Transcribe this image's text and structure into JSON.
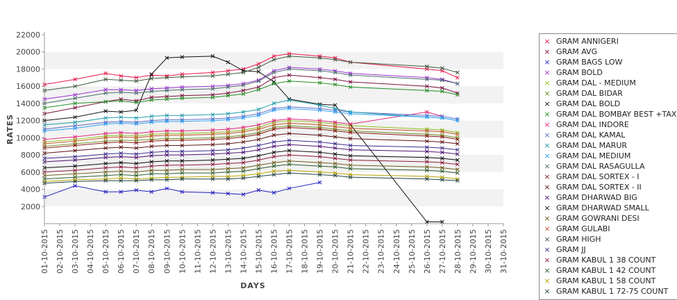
{
  "chart_data": {
    "type": "line",
    "title": "",
    "xlabel": "DAYS",
    "ylabel": "RATES",
    "ylim": [
      0,
      22000
    ],
    "yticks": [
      2000,
      4000,
      6000,
      8000,
      10000,
      12000,
      14000,
      16000,
      18000,
      20000,
      22000
    ],
    "grid": "alternating horizontal bands",
    "legend_position": "right",
    "categories": [
      "01-10-2015",
      "02-10-2015",
      "03-10-2015",
      "04-10-2015",
      "05-10-2015",
      "06-10-2015",
      "07-10-2015",
      "08-10-2015",
      "09-10-2015",
      "10-10-2015",
      "11-10-2015",
      "12-10-2015",
      "13-10-2015",
      "14-10-2015",
      "15-10-2015",
      "16-10-2015",
      "17-10-2015",
      "18-10-2015",
      "19-10-2015",
      "20-10-2015",
      "21-10-2015",
      "22-10-2015",
      "23-10-2015",
      "24-10-2015",
      "25-10-2015",
      "26-10-2015",
      "27-10-2015",
      "28-10-2015",
      "29-10-2015",
      "30-10-2015",
      "31-10-2015"
    ],
    "series": [
      {
        "name": "GRAM ANNIGERI",
        "color": "#e6194b",
        "values": [
          16200,
          null,
          16800,
          null,
          17500,
          17200,
          17000,
          17300,
          17200,
          17400,
          null,
          17600,
          17800,
          18000,
          18600,
          19500,
          19800,
          null,
          19500,
          19300,
          18800,
          null,
          null,
          null,
          null,
          18000,
          17800,
          17000,
          null,
          null,
          null
        ]
      },
      {
        "name": "GRAM AVG",
        "color": "#7a0f3c",
        "values": [
          12800,
          null,
          13500,
          null,
          14200,
          14500,
          14300,
          14700,
          14800,
          14900,
          null,
          15000,
          15200,
          15500,
          15900,
          17000,
          17300,
          null,
          17000,
          16800,
          16500,
          null,
          null,
          null,
          null,
          16000,
          15800,
          15200,
          null,
          null,
          null
        ]
      },
      {
        "name": "GRAM BAGS LOW",
        "color": "#1f1fbf",
        "values": [
          3100,
          null,
          4400,
          null,
          3700,
          3700,
          3900,
          3700,
          4100,
          3700,
          null,
          3600,
          3500,
          3400,
          3900,
          3600,
          4100,
          null,
          4800,
          null,
          null,
          null,
          null,
          null,
          null,
          null,
          null,
          null,
          null,
          null,
          null
        ]
      },
      {
        "name": "GRAM BOLD",
        "color": "#9b30d0",
        "values": [
          14500,
          null,
          15000,
          null,
          15600,
          15600,
          15500,
          15700,
          15800,
          15900,
          null,
          16000,
          16100,
          16300,
          16700,
          17800,
          18200,
          null,
          18000,
          17800,
          17500,
          null,
          null,
          null,
          null,
          17000,
          16800,
          16300,
          null,
          null,
          null
        ]
      },
      {
        "name": "GRAM DAL - MEDIUM",
        "color": "#8fbf1f",
        "values": [
          9500,
          null,
          9800,
          null,
          10200,
          10300,
          10200,
          10400,
          10500,
          10500,
          null,
          10600,
          10700,
          10900,
          11200,
          11800,
          12000,
          null,
          11800,
          11600,
          11400,
          null,
          null,
          null,
          null,
          11000,
          10900,
          10600,
          null,
          null,
          null
        ]
      },
      {
        "name": "GRAM DAL BIDAR",
        "color": "#6b8e23",
        "values": [
          9000,
          null,
          9300,
          null,
          9600,
          9700,
          9700,
          9800,
          9900,
          9900,
          null,
          10000,
          10100,
          10300,
          10600,
          11200,
          11400,
          null,
          11200,
          11000,
          10800,
          null,
          null,
          null,
          null,
          10400,
          10300,
          10000,
          null,
          null,
          null
        ]
      },
      {
        "name": "GRAM DAL BOLD",
        "color": "#111111",
        "values": [
          12000,
          null,
          12400,
          null,
          13100,
          13000,
          13200,
          17400,
          19300,
          19400,
          null,
          19500,
          18800,
          17800,
          17700,
          16500,
          14500,
          null,
          13900,
          13800,
          null,
          null,
          null,
          null,
          null,
          200,
          200,
          null,
          null,
          null,
          null
        ]
      },
      {
        "name": "GRAM DAL BOMBAY BEST +TAX",
        "color": "#228b22",
        "values": [
          13500,
          null,
          14000,
          null,
          14200,
          14300,
          14100,
          14400,
          14500,
          14600,
          null,
          14700,
          14900,
          15100,
          15600,
          16300,
          16600,
          null,
          16400,
          16200,
          15900,
          null,
          null,
          null,
          null,
          15500,
          15400,
          15000,
          null,
          null,
          null
        ]
      },
      {
        "name": "GRAM DAL INDORE",
        "color": "#e0267a",
        "values": [
          9800,
          null,
          10100,
          null,
          10500,
          10600,
          10500,
          10700,
          10800,
          10800,
          null,
          10900,
          11000,
          11200,
          11500,
          12000,
          12200,
          null,
          12000,
          11800,
          11600,
          null,
          null,
          null,
          null,
          13000,
          12500,
          null,
          null,
          null,
          null
        ]
      },
      {
        "name": "GRAM DAL KAMAL",
        "color": "#5c6bc0",
        "values": [
          11000,
          null,
          11400,
          null,
          11800,
          11900,
          11800,
          12000,
          12100,
          12100,
          null,
          12200,
          12300,
          12500,
          12800,
          13400,
          13600,
          null,
          13400,
          13200,
          13000,
          null,
          null,
          null,
          null,
          12600,
          12500,
          12200,
          null,
          null,
          null
        ]
      },
      {
        "name": "GRAM DAL MARUR",
        "color": "#1f9aa8",
        "values": [
          11500,
          null,
          11800,
          null,
          12300,
          12400,
          12300,
          12500,
          12600,
          12600,
          null,
          12700,
          12800,
          13000,
          13300,
          14000,
          14400,
          null,
          13800,
          13400,
          13000,
          null,
          null,
          null,
          null,
          12400,
          12300,
          12000,
          null,
          null,
          null
        ]
      },
      {
        "name": "GRAM DAL MEDIUM",
        "color": "#2a9df4",
        "values": [
          10800,
          null,
          11100,
          null,
          11600,
          11700,
          11600,
          11800,
          11900,
          11900,
          null,
          12000,
          12100,
          12300,
          12600,
          13200,
          13400,
          null,
          13200,
          13000,
          12800,
          null,
          null,
          null,
          null,
          12400,
          12300,
          12000,
          null,
          null,
          null
        ]
      },
      {
        "name": "GRAM DAL RASAGULLA",
        "color": "#4a6a6a",
        "values": [
          14000,
          null,
          14600,
          null,
          15200,
          15300,
          15200,
          15400,
          15500,
          15600,
          null,
          15700,
          15900,
          16100,
          16600,
          17600,
          18000,
          null,
          17800,
          17600,
          17300,
          null,
          null,
          null,
          null,
          16800,
          16700,
          16300,
          null,
          null,
          null
        ]
      },
      {
        "name": "GRAM DAL SORTEX - I",
        "color": "#8b1a1a",
        "values": [
          8800,
          null,
          9100,
          null,
          9400,
          9500,
          9400,
          9600,
          9700,
          9700,
          null,
          9800,
          9900,
          10100,
          10400,
          11000,
          11200,
          null,
          11000,
          10800,
          10600,
          null,
          null,
          null,
          null,
          10200,
          10100,
          9800,
          null,
          null,
          null
        ]
      },
      {
        "name": "GRAM DAL SORTEX - II",
        "color": "#5a1010",
        "values": [
          8200,
          null,
          8500,
          null,
          8800,
          8900,
          8800,
          9000,
          9100,
          9100,
          null,
          9200,
          9300,
          9500,
          9800,
          10300,
          10500,
          null,
          10300,
          10100,
          9900,
          null,
          null,
          null,
          null,
          9600,
          9500,
          9300,
          null,
          null,
          null
        ]
      },
      {
        "name": "GRAM DHARWAD BIG",
        "color": "#4b0f6e",
        "values": [
          7200,
          null,
          7400,
          null,
          7700,
          7800,
          7700,
          7900,
          8000,
          8000,
          null,
          8100,
          8200,
          8300,
          8600,
          9000,
          9200,
          null,
          9000,
          8800,
          8600,
          null,
          null,
          null,
          null,
          8400,
          8300,
          8100,
          null,
          null,
          null
        ]
      },
      {
        "name": "GRAM DHARWAD SMALL",
        "color": "#0a0a0a",
        "values": [
          6500,
          null,
          6700,
          null,
          7000,
          7100,
          7000,
          7200,
          7300,
          7300,
          null,
          7400,
          7500,
          7600,
          7900,
          8300,
          8500,
          null,
          8300,
          8100,
          7900,
          null,
          null,
          null,
          null,
          7700,
          7600,
          7400,
          null,
          null,
          null
        ]
      },
      {
        "name": "GRAM GOWRANI DESI",
        "color": "#6b5a1a",
        "values": [
          5600,
          null,
          5800,
          null,
          6000,
          6100,
          6000,
          6200,
          6200,
          6300,
          null,
          6300,
          6400,
          6500,
          6800,
          7100,
          7300,
          null,
          7100,
          7000,
          6800,
          null,
          null,
          null,
          null,
          6600,
          6500,
          6300,
          null,
          null,
          null
        ]
      },
      {
        "name": "GRAM GULABI",
        "color": "#c0562a",
        "values": [
          9300,
          null,
          9600,
          null,
          10000,
          10100,
          10000,
          10200,
          10300,
          10300,
          null,
          10400,
          10500,
          10700,
          11000,
          11500,
          11700,
          null,
          11500,
          11300,
          11100,
          null,
          null,
          null,
          null,
          10800,
          10700,
          10400,
          null,
          null,
          null
        ]
      },
      {
        "name": "GRAM HIGH",
        "color": "#3d5a3d",
        "values": [
          15500,
          null,
          16000,
          null,
          16800,
          16700,
          16600,
          16900,
          17000,
          17100,
          null,
          17200,
          17400,
          17600,
          18200,
          19100,
          19500,
          null,
          19300,
          19100,
          18800,
          null,
          null,
          null,
          null,
          18300,
          18100,
          17600,
          null,
          null,
          null
        ]
      },
      {
        "name": "GRAM JJ",
        "color": "#3a2a8a",
        "values": [
          7600,
          null,
          7800,
          null,
          8100,
          8200,
          8100,
          8300,
          8400,
          8400,
          null,
          8500,
          8600,
          8800,
          9100,
          9500,
          9700,
          null,
          9500,
          9300,
          9100,
          null,
          null,
          null,
          null,
          8900,
          8800,
          8600,
          null,
          null,
          null
        ]
      },
      {
        "name": "GRAM KABUL 1 38 COUNT",
        "color": "#8a1a3a",
        "values": [
          6000,
          null,
          6200,
          null,
          6500,
          6600,
          6500,
          6700,
          6800,
          6800,
          null,
          6900,
          7000,
          7100,
          7400,
          7800,
          8000,
          null,
          7800,
          7600,
          7400,
          null,
          null,
          null,
          null,
          7200,
          7100,
          6900,
          null,
          null,
          null
        ]
      },
      {
        "name": "GRAM KABUL 1 42 COUNT",
        "color": "#2a5a2a",
        "values": [
          5200,
          null,
          5400,
          null,
          5600,
          5700,
          5600,
          5800,
          5800,
          5900,
          null,
          5900,
          6000,
          6100,
          6400,
          6700,
          6900,
          null,
          6700,
          6600,
          6400,
          null,
          null,
          null,
          null,
          6200,
          6100,
          5900,
          null,
          null,
          null
        ]
      },
      {
        "name": "GRAM KABUL 1 58 COUNT",
        "color": "#b5a000",
        "values": [
          4900,
          null,
          5100,
          null,
          5200,
          5300,
          5200,
          5300,
          5400,
          5400,
          null,
          5500,
          5500,
          5600,
          5800,
          6100,
          6200,
          null,
          6000,
          5900,
          5700,
          null,
          null,
          null,
          null,
          5500,
          5400,
          5200,
          null,
          null,
          null
        ]
      },
      {
        "name": "GRAM KABUL 1 72-75 COUNT",
        "color": "#1f3f3f",
        "values": [
          4700,
          null,
          4900,
          null,
          5000,
          5000,
          5000,
          5100,
          5100,
          5200,
          null,
          5200,
          5200,
          5300,
          5500,
          5700,
          5900,
          null,
          5700,
          5600,
          5400,
          null,
          null,
          null,
          null,
          5200,
          5100,
          5000,
          null,
          null,
          null
        ]
      }
    ]
  }
}
